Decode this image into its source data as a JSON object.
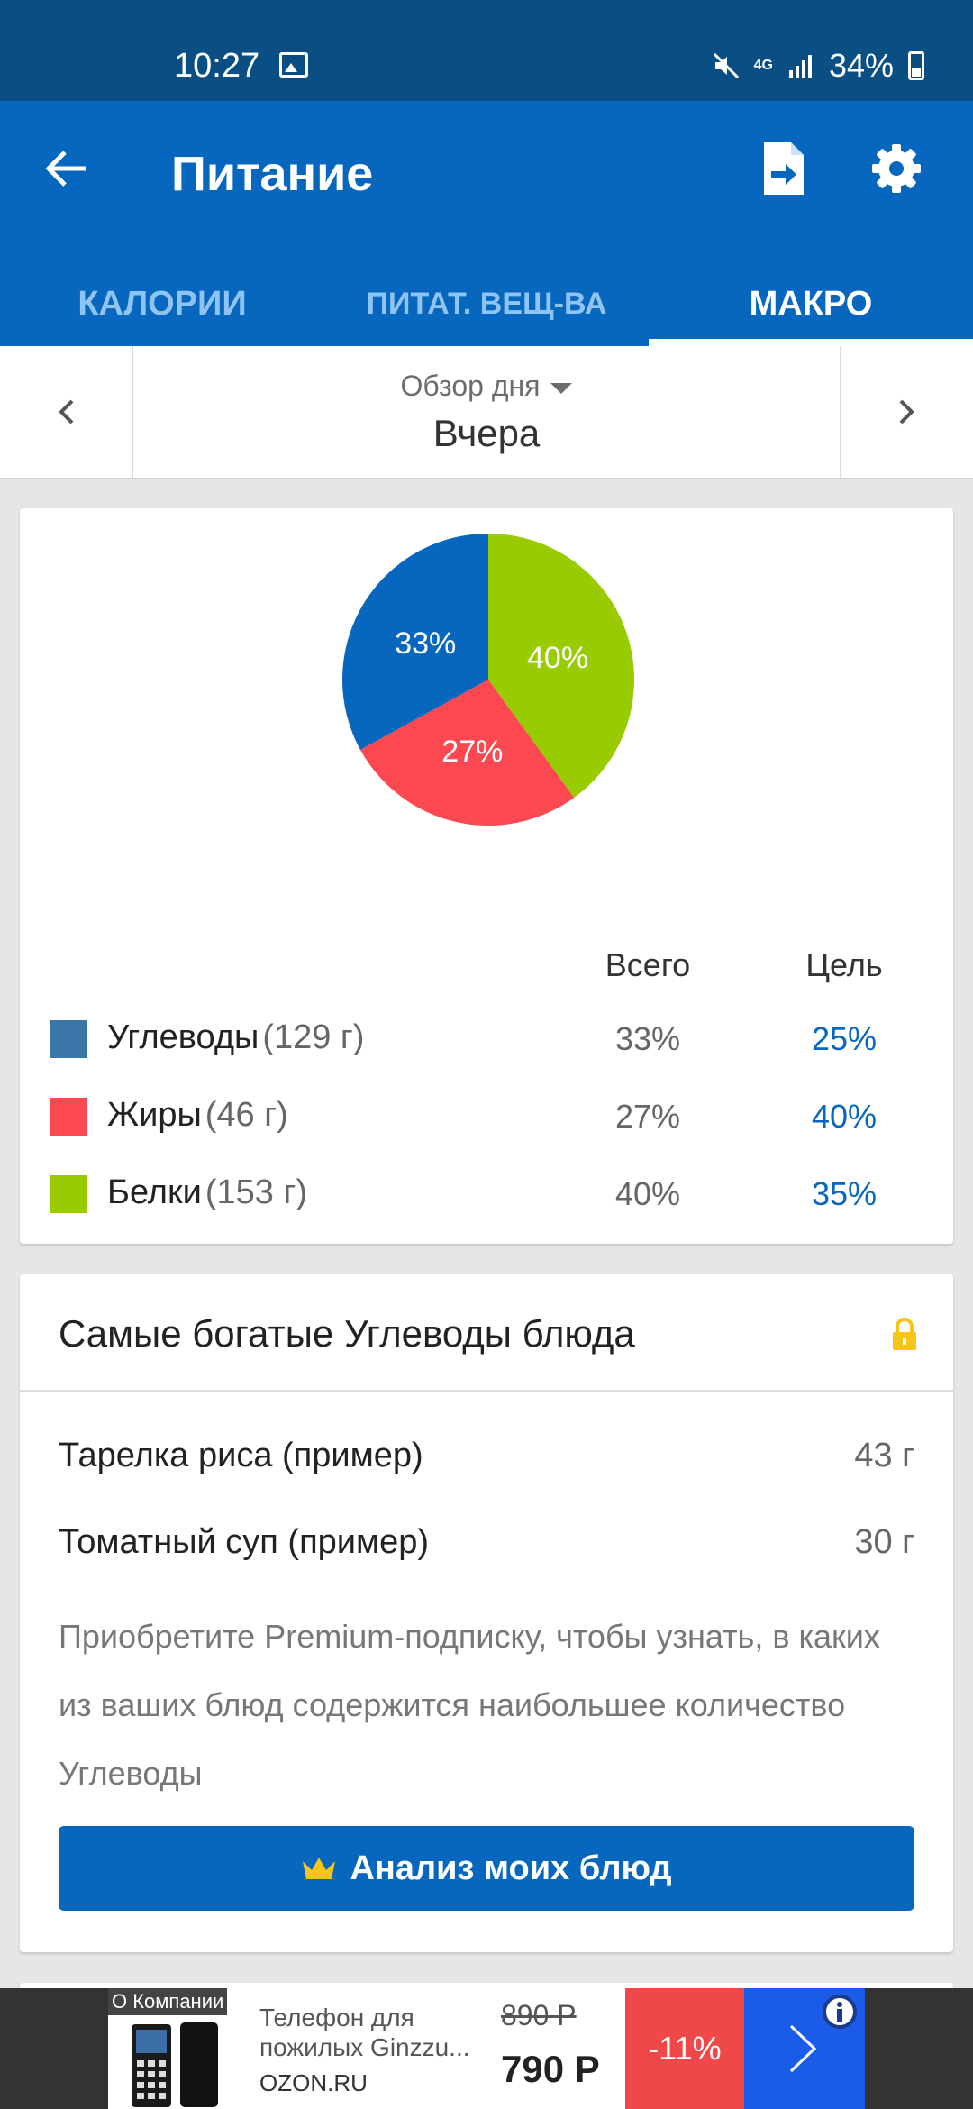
{
  "status_bar": {
    "time": "10:27",
    "battery": "34%",
    "network": "4G"
  },
  "app_bar": {
    "title": "Питание"
  },
  "tabs": [
    {
      "label": "КАЛОРИИ"
    },
    {
      "label": "ПИТАТ. ВЕЩ-ВА"
    },
    {
      "label": "МАКРО"
    }
  ],
  "date_nav": {
    "mode": "Обзор дня",
    "value": "Вчера"
  },
  "chart_data": {
    "type": "pie",
    "categories": [
      "Углеводы",
      "Жиры",
      "Белки"
    ],
    "values": [
      33,
      27,
      40
    ],
    "labels": [
      "33%",
      "27%",
      "40%"
    ],
    "colors": [
      "#0767be",
      "#fc4850",
      "#99cc00"
    ]
  },
  "macros": {
    "header_total": "Всего",
    "header_goal": "Цель",
    "rows": [
      {
        "name": "Углеводы",
        "grams": "(129 г)",
        "total": "33%",
        "goal": "25%",
        "color": "#3b76a8"
      },
      {
        "name": "Жиры",
        "grams": "(46 г)",
        "total": "27%",
        "goal": "40%",
        "color": "#fc4850"
      },
      {
        "name": "Белки",
        "grams": "(153 г)",
        "total": "40%",
        "goal": "35%",
        "color": "#99cc00"
      }
    ]
  },
  "foods": {
    "title": "Самые богатые Углеводы блюда",
    "items": [
      {
        "name": "Тарелка риса (пример)",
        "amount": "43 г"
      },
      {
        "name": "Томатный суп (пример)",
        "amount": "30 г"
      }
    ],
    "premium_text": "Приобретите Premium-подписку, чтобы узнать, в каких из ваших блюд содержится наибольшее количество Углеводы",
    "button_label": "Анализ моих блюд"
  },
  "ad": {
    "company": "О Компании",
    "title": "Телефон для пожилых Ginzzu...",
    "source": "OZON.RU",
    "old_price": "890 Р",
    "price": "790 Р",
    "discount": "-11%"
  }
}
